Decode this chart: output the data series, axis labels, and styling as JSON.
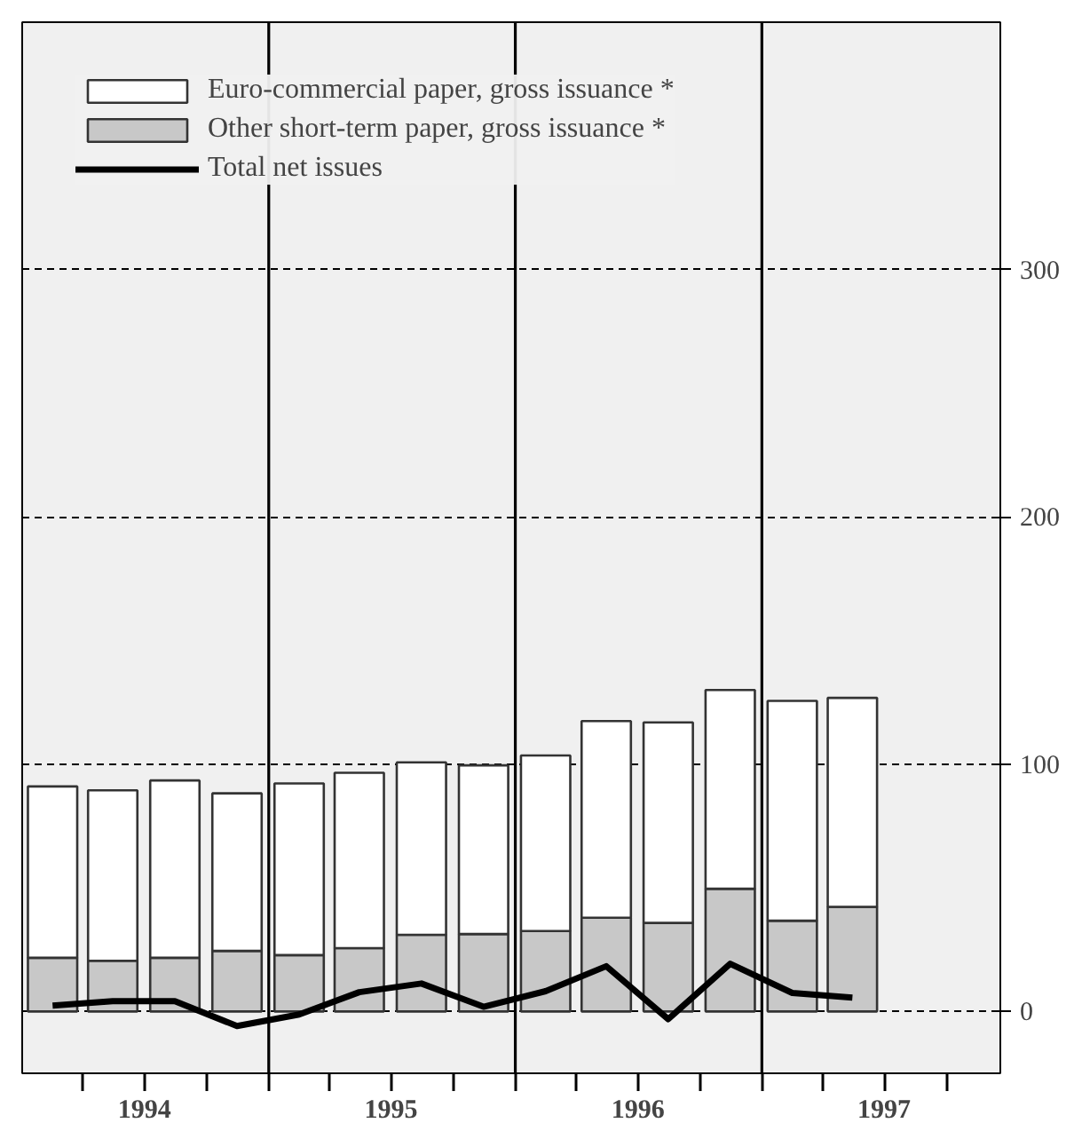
{
  "chart_data": {
    "type": "bar",
    "stacked": true,
    "x": [
      "1994-02-15",
      "1994-05-15",
      "1994-08-15",
      "1994-11-15",
      "1995-02-15",
      "1995-05-15",
      "1995-08-15",
      "1995-11-15",
      "1996-02-15",
      "1996-05-15",
      "1996-08-15",
      "1996-11-15",
      "1997-02-15",
      "1997-05-15"
    ],
    "series": [
      {
        "name": "Other short-term paper, gross issuance *",
        "color": "#c8c8c8",
        "values": [
          21.7,
          20.5,
          21.7,
          24.5,
          22.8,
          25.6,
          31,
          31.3,
          32.5,
          37.9,
          35.8,
          49.6,
          36.7,
          42.3
        ]
      },
      {
        "name": "Euro-commercial paper, gross issuance *",
        "color": "#ffffff",
        "values": [
          69.3,
          68.9,
          71.7,
          63.7,
          69.4,
          70.9,
          69.7,
          68.2,
          71,
          79.5,
          81.1,
          80.4,
          88.9,
          84.5
        ]
      },
      {
        "name": "Total net issues",
        "type": "line",
        "color": "#000000",
        "values": [
          2.4,
          4.2,
          4.2,
          -5.9,
          -1.2,
          7.8,
          11.3,
          1.9,
          8.2,
          18.3,
          -3.1,
          19.3,
          7.5,
          5.6
        ]
      }
    ],
    "xlim": [
      "1994-01-01",
      "1997-12-20"
    ],
    "xticks": [
      {
        "value": "1994-04-01",
        "label": null
      },
      {
        "value": "1994-07-01",
        "label": "1994"
      },
      {
        "value": "1994-10-01",
        "label": null
      },
      {
        "value": "1995-01-01",
        "label": null
      },
      {
        "value": "1995-04-01",
        "label": null
      },
      {
        "value": "1995-07-01",
        "label": "1995"
      },
      {
        "value": "1995-10-01",
        "label": null
      },
      {
        "value": "1996-01-01",
        "label": null
      },
      {
        "value": "1996-04-01",
        "label": null
      },
      {
        "value": "1996-07-01",
        "label": "1996"
      },
      {
        "value": "1996-10-01",
        "label": null
      },
      {
        "value": "1997-01-01",
        "label": null
      },
      {
        "value": "1997-04-01",
        "label": null
      },
      {
        "value": "1997-07-01",
        "label": "1997"
      },
      {
        "value": "1997-10-01",
        "label": null
      }
    ],
    "ylim": [
      -25,
      400
    ],
    "yticks": [
      0,
      100,
      200,
      300
    ],
    "ref_lines": [
      {
        "axis": "x",
        "value": "1995-01-01",
        "label": null,
        "color": "#000000"
      },
      {
        "axis": "x",
        "value": "1996-01-01",
        "label": null,
        "color": "#000000"
      },
      {
        "axis": "x",
        "value": "1997-01-01",
        "label": null,
        "color": "#000000"
      }
    ],
    "grid": "y",
    "legend": "top left",
    "line_style": "solid",
    "marker": "none"
  }
}
